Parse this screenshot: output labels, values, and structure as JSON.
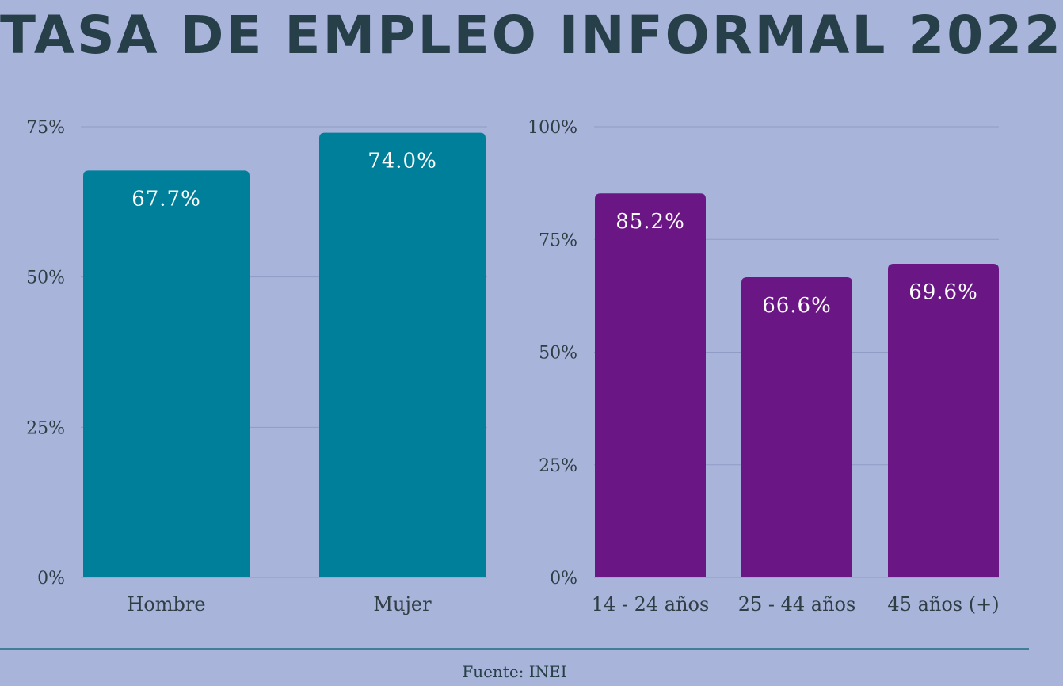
{
  "title": "TASA DE EMPLEO INFORMAL 2022",
  "source": "Fuente: INEI",
  "colors": {
    "background": "#a9b4da",
    "title": "#263f49",
    "sex_bar": "#007f9b",
    "age_bar": "#6a1785",
    "gridline": "#8f9cc6",
    "bar_label": "#ffffff",
    "axis_text": "#2f3d45"
  },
  "chart_data": [
    {
      "type": "bar",
      "categories": [
        "Hombre",
        "Mujer"
      ],
      "values": [
        67.7,
        74.0
      ],
      "value_labels": [
        "67.7%",
        "74.0%"
      ],
      "ylim": [
        0,
        75
      ],
      "yticks": [
        0,
        25,
        50,
        75
      ],
      "ytick_labels": [
        "0%",
        "25%",
        "50%",
        "75%"
      ],
      "grid": true,
      "color": "#007f9b"
    },
    {
      "type": "bar",
      "categories": [
        "14 - 24 años",
        "25 - 44 años",
        "45 años (+)"
      ],
      "values": [
        85.2,
        66.6,
        69.6
      ],
      "value_labels": [
        "85.2%",
        "66.6%",
        "69.6%"
      ],
      "ylim": [
        0,
        100
      ],
      "yticks": [
        0,
        25,
        50,
        75,
        100
      ],
      "ytick_labels": [
        "0%",
        "25%",
        "50%",
        "75%",
        "100%"
      ],
      "grid": true,
      "color": "#6a1785"
    }
  ]
}
